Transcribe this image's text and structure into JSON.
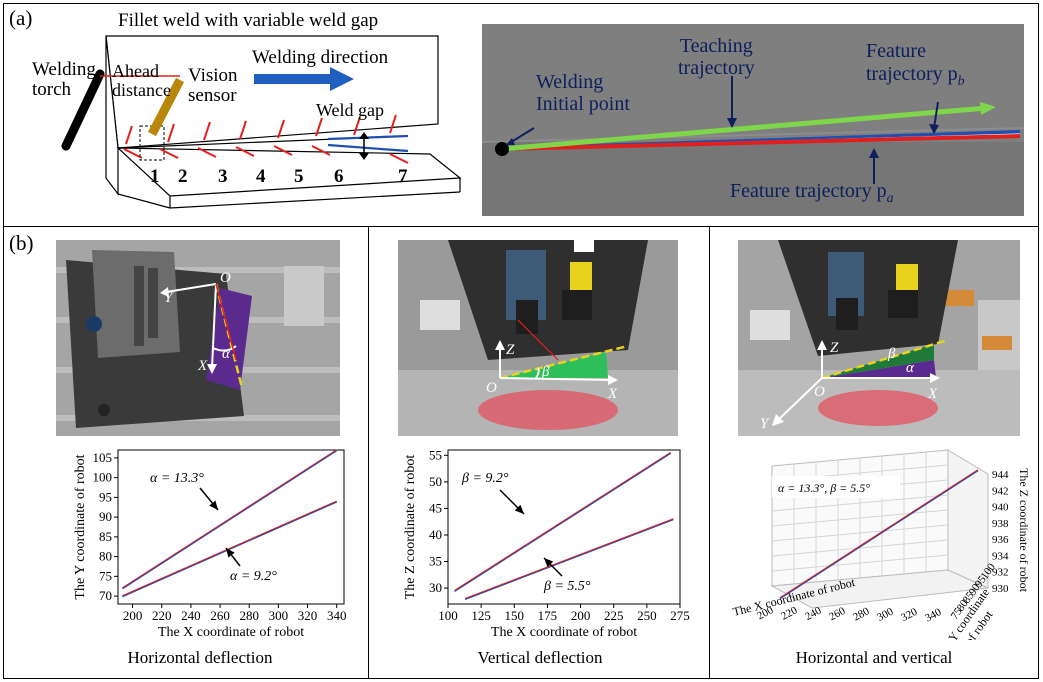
{
  "panel_a": {
    "label": "(a)",
    "sketch": {
      "title": "Fillet weld with variable weld gap",
      "welding_torch": "Welding\ntorch",
      "ahead_distance": "Ahead\ndistance",
      "vision_sensor": "Vision\nsensor",
      "welding_direction": "Welding direction",
      "weld_gap": "Weld gap",
      "stations": [
        "1",
        "2",
        "3",
        "4",
        "5",
        "6",
        "7"
      ]
    },
    "trajectory": {
      "initial_point": "Welding\nInitial point",
      "teaching": "Teaching\ntrajectory",
      "feature_b": "Feature\ntrajectory p",
      "feature_b_sub": "b",
      "feature_a": "Feature trajectory p",
      "feature_a_sub": "a"
    }
  },
  "panel_b": {
    "label": "(b)",
    "photos": {
      "h": {
        "O": "O",
        "X": "X",
        "Y": "Y",
        "angle": "α"
      },
      "v": {
        "O": "O",
        "X": "X",
        "Z": "Z",
        "angle": "β"
      },
      "hv": {
        "O": "O",
        "X": "X",
        "Y": "Y",
        "Z": "Z",
        "angle1": "β",
        "angle2": "α"
      }
    },
    "captions": [
      "Horizontal deflection",
      "Vertical deflection",
      "Horizontal and vertical"
    ]
  },
  "colors": {
    "red": "#e0201e",
    "blue": "#1f4fb0",
    "green": "#7fd64a",
    "yellow": "#e8d21e",
    "purple": "#6b2fa0",
    "arrow": "#1f5fbf"
  },
  "chart_data": [
    {
      "type": "line",
      "xlabel": "The X coordinate of robot",
      "ylabel": "The Y coordinate of robot",
      "xlim": [
        190,
        345
      ],
      "ylim": [
        68,
        107
      ],
      "xticks": [
        200,
        220,
        240,
        260,
        280,
        300,
        320,
        340
      ],
      "yticks": [
        70,
        75,
        80,
        85,
        90,
        95,
        100,
        105
      ],
      "series": [
        {
          "name": "α = 13.3°",
          "x": [
            193,
            340
          ],
          "y": [
            72,
            107
          ]
        },
        {
          "name": "α = 9.2°",
          "x": [
            193,
            340
          ],
          "y": [
            70,
            94
          ]
        }
      ],
      "annotations": [
        "α = 13.3°",
        "α = 9.2°"
      ]
    },
    {
      "type": "line",
      "xlabel": "The X coordinate of robot",
      "ylabel": "The Z coordinate of robot",
      "xlim": [
        100,
        275
      ],
      "ylim": [
        27,
        56
      ],
      "xticks": [
        100,
        125,
        150,
        175,
        200,
        225,
        250,
        275
      ],
      "yticks": [
        30,
        35,
        40,
        45,
        50,
        55
      ],
      "series": [
        {
          "name": "β = 9.2°",
          "x": [
            105,
            268
          ],
          "y": [
            29.5,
            55.5
          ]
        },
        {
          "name": "β = 5.5°",
          "x": [
            113,
            270
          ],
          "y": [
            28,
            43
          ]
        }
      ],
      "annotations": [
        "β = 9.2°",
        "β = 5.5°"
      ]
    },
    {
      "type": "line",
      "xlabel": "The X coordinate of robot",
      "ylabel": "The Y coordinate\nof robot",
      "zlabel": "The Z coordinate\nof robot",
      "xticks": [
        200,
        220,
        240,
        260,
        280,
        300,
        320,
        340
      ],
      "yticks": [
        75,
        80,
        85,
        90,
        95,
        100
      ],
      "zticks": [
        930,
        932,
        934,
        936,
        938,
        940,
        942,
        944
      ],
      "series": [
        {
          "name": "α = 13.3°, β = 5.5°",
          "x": [
            200,
            340
          ],
          "y": [
            75,
            100
          ],
          "z": [
            930,
            944
          ]
        }
      ],
      "annotations": [
        "α = 13.3°, β = 5.5°"
      ]
    }
  ]
}
